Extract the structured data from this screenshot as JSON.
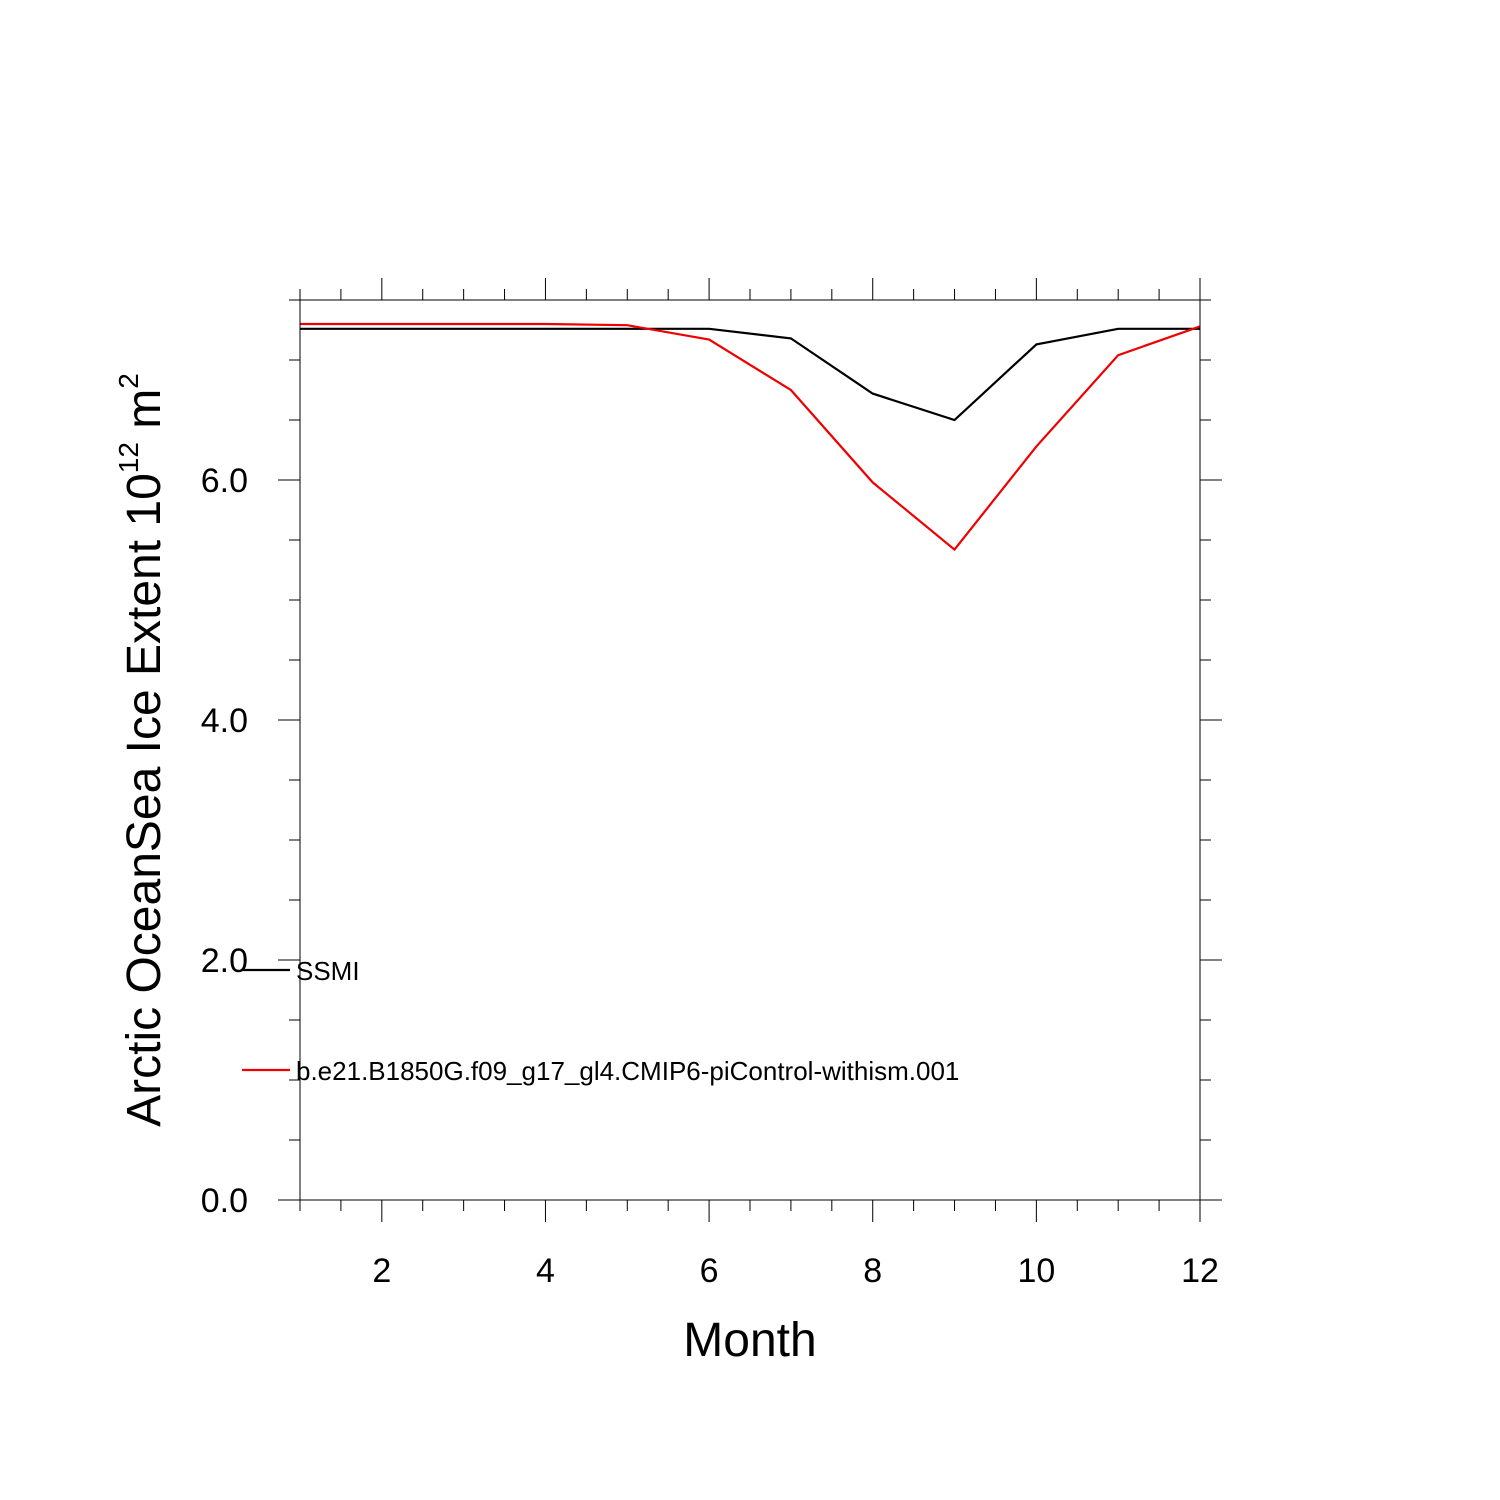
{
  "chart_data": {
    "type": "line",
    "title": "",
    "xlabel": "Month",
    "ylabel": {
      "main": "Arctic OceanSea Ice Extent 10",
      "exponent": "12",
      "unit": " m",
      "unit_exponent": "2"
    },
    "xlim": [
      1,
      12
    ],
    "ylim": [
      0,
      7.5
    ],
    "x_ticks": [
      2,
      4,
      6,
      8,
      10,
      12
    ],
    "x_tick_labels": [
      "2",
      "4",
      "6",
      "8",
      "10",
      "12"
    ],
    "y_ticks": [
      0,
      2,
      4,
      6
    ],
    "y_tick_labels": [
      "0.0",
      "2.0",
      "4.0",
      "6.0"
    ],
    "x_minor_step": 0.5,
    "y_minor_step": 0.5,
    "grid": false,
    "legend_position": "bottom-left",
    "series": [
      {
        "name": "SSMI",
        "color": "#000000",
        "x": [
          1,
          2,
          3,
          4,
          5,
          6,
          7,
          8,
          9,
          10,
          11,
          12
        ],
        "values": [
          7.26,
          7.26,
          7.26,
          7.26,
          7.26,
          7.26,
          7.18,
          6.72,
          6.5,
          7.13,
          7.26,
          7.26
        ]
      },
      {
        "name": "b.e21.B1850G.f09_g17_gl4.CMIP6-piControl-withism.001",
        "color": "#ee0000",
        "x": [
          1,
          2,
          3,
          4,
          5,
          6,
          7,
          8,
          9,
          10,
          11,
          12
        ],
        "values": [
          7.3,
          7.3,
          7.3,
          7.3,
          7.29,
          7.17,
          6.75,
          5.98,
          5.42,
          6.28,
          7.04,
          7.28
        ]
      }
    ]
  }
}
